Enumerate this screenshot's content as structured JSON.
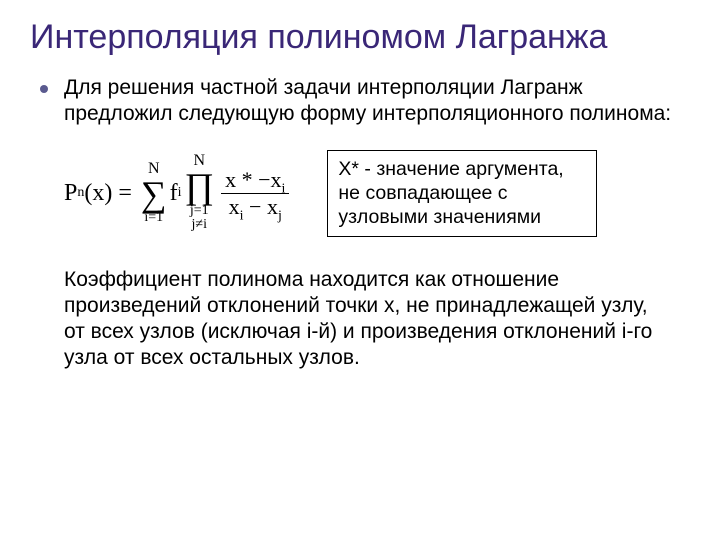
{
  "colors": {
    "title": "#3a2777",
    "bullet": "#5a5a8f",
    "text": "#000000",
    "box_border": "#000000",
    "background": "#ffffff"
  },
  "title": "Интерполяция полиномом Лагранжа",
  "bullet": {
    "text": "Для решения частной задачи интерполяции Лагранж предложил следующую форму интерполяционного полинома:"
  },
  "formula": {
    "lhs_p": "P",
    "lhs_sub": "n",
    "lhs_arg": "(x)",
    "eq": "=",
    "sum": {
      "sym": "∑",
      "upper": "N",
      "lower": "i=1"
    },
    "coef_f": "f",
    "coef_sub": "i",
    "prod": {
      "sym": "∏",
      "upper": "N",
      "lower1": "j=1",
      "lower2": "j≠i"
    },
    "frac": {
      "num": "x * −x",
      "num_sub": "i",
      "den_l": "x",
      "den_l_sub": "i",
      "den_mid": " − x",
      "den_r_sub": "j"
    }
  },
  "boxnote": "X* - значение аргумента, не совпадающее с узловыми значениями",
  "coeff_text": "Коэффициент полинома находится как отношение произведений отклонений точки х, не принадлежащей узлу, от всех узлов (исключая i-й) и произведения отклонений i-го узла от всех остальных узлов."
}
